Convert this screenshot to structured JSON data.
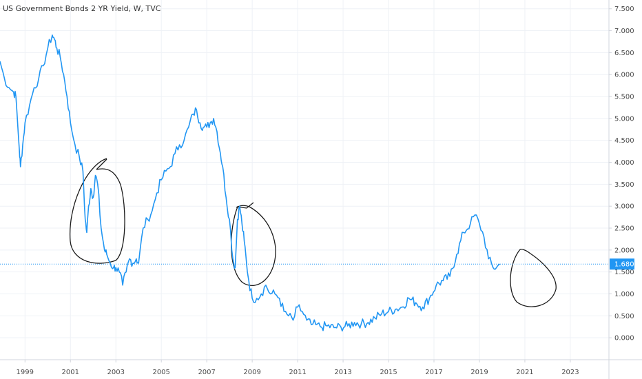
{
  "header": {
    "title": "US Government Bonds 2 YR Yield, W, TVC"
  },
  "colors": {
    "line": "#2196f3",
    "grid": "#eef1f6",
    "axis": "#d0d4dc",
    "last_price_bg": "#2196f3",
    "annotation": "#1a1a1a"
  },
  "chart_data": {
    "type": "line",
    "title": "US Government Bonds 2 YR Yield, W, TVC",
    "xlabel": "",
    "ylabel": "",
    "xlim": [
      1997.9,
      2024.7
    ],
    "ylim": [
      -0.5,
      7.7
    ],
    "x_ticks": [
      1999,
      2001,
      2003,
      2005,
      2007,
      2009,
      2011,
      2013,
      2015,
      2017,
      2019,
      2021,
      2023
    ],
    "x_tick_labels": [
      "1999",
      "2001",
      "2003",
      "2005",
      "2007",
      "2009",
      "2011",
      "2013",
      "2015",
      "2017",
      "2019",
      "2021",
      "2023"
    ],
    "y_ticks": [
      0,
      0.5,
      1,
      1.5,
      2,
      2.5,
      3,
      3.5,
      4,
      4.5,
      5,
      5.5,
      6,
      6.5,
      7,
      7.5
    ],
    "y_tick_labels": [
      "0.000",
      "0.500",
      "1.000",
      "1.500",
      "2.000",
      "2.500",
      "3.000",
      "3.500",
      "4.000",
      "4.500",
      "5.000",
      "5.500",
      "6.000",
      "6.500",
      "7.000",
      "7.500"
    ],
    "last_value": 1.68,
    "last_value_label": "1.680",
    "grid": true,
    "series": [
      {
        "x": [
          1997.9,
          1998.1,
          1998.3,
          1998.5,
          1998.6,
          1998.75,
          1998.8,
          1998.9,
          1999.0,
          1999.2,
          1999.4,
          1999.6,
          1999.8,
          2000.0,
          2000.2,
          2000.3,
          2000.4,
          2000.55,
          2000.7,
          2000.85,
          2001.0,
          2001.2,
          2001.4,
          2001.55,
          2001.65,
          2001.72,
          2001.8,
          2001.9,
          2002.0,
          2002.1,
          2002.2,
          2002.35,
          2002.5,
          2002.6,
          2002.75,
          2002.9,
          2003.0,
          2003.15,
          2003.3,
          2003.45,
          2003.6,
          2003.75,
          2003.9,
          2004.0,
          2004.2,
          2004.4,
          2004.6,
          2004.8,
          2005.0,
          2005.2,
          2005.4,
          2005.6,
          2005.8,
          2006.0,
          2006.2,
          2006.4,
          2006.55,
          2006.7,
          2006.85,
          2007.0,
          2007.15,
          2007.3,
          2007.45,
          2007.6,
          2007.7,
          2007.85,
          2008.0,
          2008.15,
          2008.25,
          2008.35,
          2008.45,
          2008.55,
          2008.65,
          2008.75,
          2008.85,
          2009.0,
          2009.2,
          2009.4,
          2009.6,
          2009.8,
          2010.0,
          2010.2,
          2010.4,
          2010.6,
          2010.8,
          2011.0,
          2011.2,
          2011.4,
          2011.6,
          2011.8,
          2012.0,
          2012.3,
          2012.6,
          2012.9,
          2013.2,
          2013.5,
          2013.8,
          2014.1,
          2014.4,
          2014.7,
          2015.0,
          2015.3,
          2015.6,
          2015.9,
          2016.2,
          2016.5,
          2016.8,
          2017.1,
          2017.4,
          2017.7,
          2018.0,
          2018.3,
          2018.6,
          2018.8,
          2019.0,
          2019.2,
          2019.4,
          2019.6,
          2019.75,
          2019.9
        ],
        "y": [
          6.3,
          5.9,
          5.7,
          5.6,
          5.5,
          4.3,
          3.9,
          4.4,
          4.9,
          5.3,
          5.7,
          5.9,
          6.2,
          6.6,
          6.9,
          6.8,
          6.6,
          6.4,
          6.0,
          5.5,
          4.9,
          4.4,
          4.1,
          3.8,
          2.7,
          2.4,
          3.0,
          3.4,
          3.2,
          3.7,
          3.5,
          2.5,
          2.0,
          1.9,
          1.7,
          1.6,
          1.6,
          1.5,
          1.2,
          1.5,
          1.8,
          1.7,
          1.8,
          1.7,
          2.5,
          2.7,
          2.9,
          3.3,
          3.6,
          3.8,
          3.9,
          4.2,
          4.4,
          4.5,
          4.8,
          5.1,
          5.2,
          4.9,
          4.8,
          4.8,
          4.9,
          5.0,
          4.7,
          4.2,
          3.9,
          3.2,
          2.7,
          1.8,
          1.6,
          2.7,
          3.0,
          2.6,
          2.2,
          1.7,
          1.3,
          0.9,
          0.9,
          1.0,
          1.2,
          1.0,
          1.0,
          0.9,
          0.6,
          0.5,
          0.4,
          0.7,
          0.6,
          0.4,
          0.3,
          0.3,
          0.25,
          0.27,
          0.23,
          0.25,
          0.27,
          0.35,
          0.32,
          0.35,
          0.45,
          0.55,
          0.6,
          0.65,
          0.7,
          0.9,
          0.8,
          0.7,
          0.9,
          1.2,
          1.3,
          1.4,
          1.9,
          2.4,
          2.6,
          2.8,
          2.6,
          2.3,
          1.8,
          1.6,
          1.6,
          1.68
        ]
      }
    ]
  }
}
